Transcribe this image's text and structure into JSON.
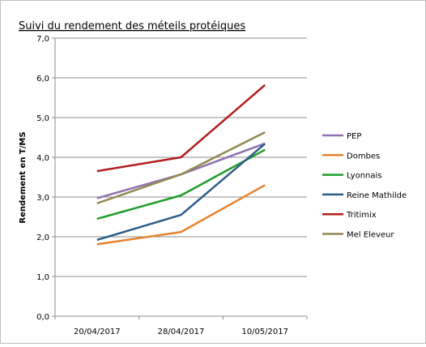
{
  "chart_data": {
    "type": "line",
    "title": "Suivi du rendement des méteils protéiques",
    "xlabel": "",
    "ylabel": "Rendement en T/MS",
    "categories": [
      "20/04/2017",
      "28/04/2017",
      "10/05/2017"
    ],
    "ylim": [
      0,
      7
    ],
    "yticks": [
      "0,0",
      "1,0",
      "2,0",
      "3,0",
      "4,0",
      "5,0",
      "6,0",
      "7,0"
    ],
    "grid": true,
    "legend_position": "right",
    "series": [
      {
        "name": "PEP",
        "values": [
          2.97,
          3.57,
          4.35
        ],
        "color": "#8f72b0"
      },
      {
        "name": "Dombes",
        "values": [
          1.81,
          2.12,
          3.3
        ],
        "color": "#e9822e"
      },
      {
        "name": "Lyonnais",
        "values": [
          2.45,
          3.04,
          4.19
        ],
        "color": "#1f9e2a"
      },
      {
        "name": "Reine Mathilde",
        "values": [
          1.92,
          2.55,
          4.34
        ],
        "color": "#2e5d8a"
      },
      {
        "name": "Tritimix",
        "values": [
          3.65,
          4.0,
          5.82
        ],
        "color": "#b21d1d"
      },
      {
        "name": "Mel Eleveur",
        "values": [
          2.84,
          3.57,
          4.63
        ],
        "color": "#938953"
      }
    ]
  }
}
